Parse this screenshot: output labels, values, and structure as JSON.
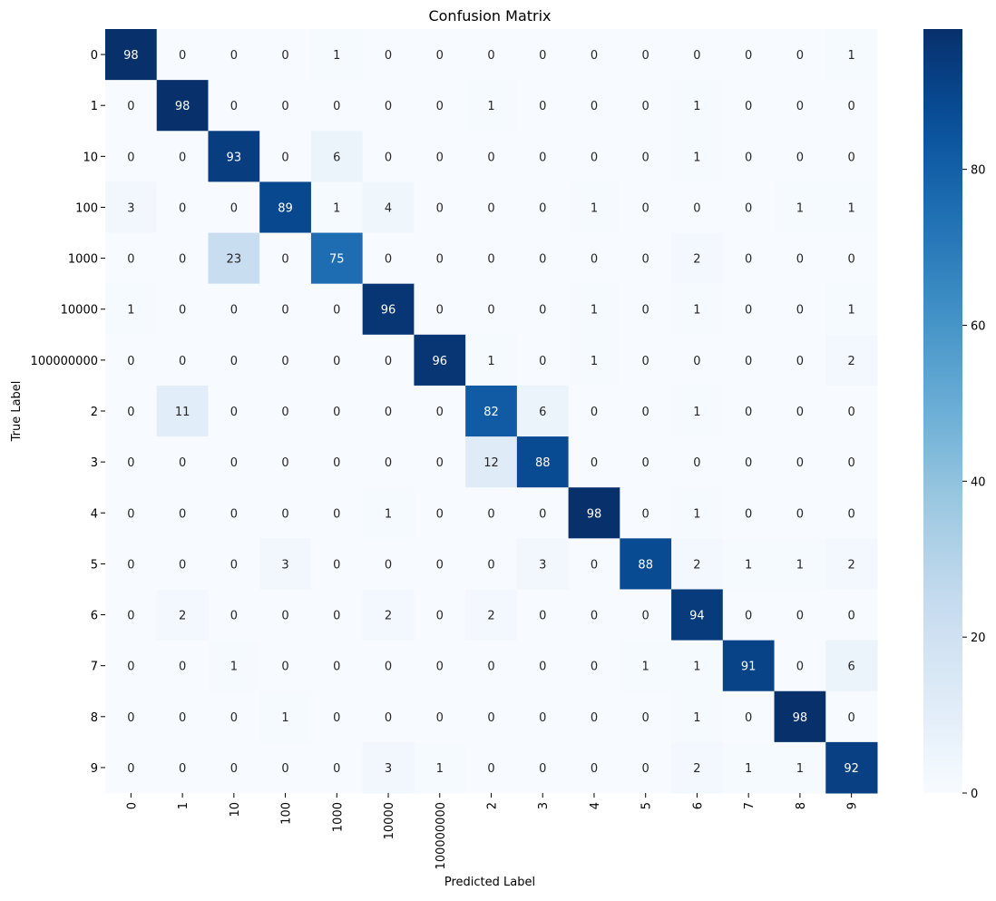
{
  "chart_data": {
    "type": "heatmap",
    "title": "Confusion Matrix",
    "xlabel": "Predicted Label",
    "ylabel": "True Label",
    "row_labels": [
      "0",
      "1",
      "10",
      "100",
      "1000",
      "10000",
      "100000000",
      "2",
      "3",
      "4",
      "5",
      "6",
      "7",
      "8",
      "9"
    ],
    "col_labels": [
      "0",
      "1",
      "10",
      "100",
      "1000",
      "10000",
      "100000000",
      "2",
      "3",
      "4",
      "5",
      "6",
      "7",
      "8",
      "9"
    ],
    "values": [
      [
        98,
        0,
        0,
        0,
        1,
        0,
        0,
        0,
        0,
        0,
        0,
        0,
        0,
        0,
        1
      ],
      [
        0,
        98,
        0,
        0,
        0,
        0,
        0,
        1,
        0,
        0,
        0,
        1,
        0,
        0,
        0
      ],
      [
        0,
        0,
        93,
        0,
        6,
        0,
        0,
        0,
        0,
        0,
        0,
        1,
        0,
        0,
        0
      ],
      [
        3,
        0,
        0,
        89,
        1,
        4,
        0,
        0,
        0,
        1,
        0,
        0,
        0,
        1,
        1
      ],
      [
        0,
        0,
        23,
        0,
        75,
        0,
        0,
        0,
        0,
        0,
        0,
        2,
        0,
        0,
        0
      ],
      [
        1,
        0,
        0,
        0,
        0,
        96,
        0,
        0,
        0,
        1,
        0,
        1,
        0,
        0,
        1
      ],
      [
        0,
        0,
        0,
        0,
        0,
        0,
        96,
        1,
        0,
        1,
        0,
        0,
        0,
        0,
        2
      ],
      [
        0,
        11,
        0,
        0,
        0,
        0,
        0,
        82,
        6,
        0,
        0,
        1,
        0,
        0,
        0
      ],
      [
        0,
        0,
        0,
        0,
        0,
        0,
        0,
        12,
        88,
        0,
        0,
        0,
        0,
        0,
        0
      ],
      [
        0,
        0,
        0,
        0,
        0,
        1,
        0,
        0,
        0,
        98,
        0,
        1,
        0,
        0,
        0
      ],
      [
        0,
        0,
        0,
        3,
        0,
        0,
        0,
        0,
        3,
        0,
        88,
        2,
        1,
        1,
        2
      ],
      [
        0,
        2,
        0,
        0,
        0,
        2,
        0,
        2,
        0,
        0,
        0,
        94,
        0,
        0,
        0
      ],
      [
        0,
        0,
        1,
        0,
        0,
        0,
        0,
        0,
        0,
        0,
        1,
        1,
        91,
        0,
        6
      ],
      [
        0,
        0,
        0,
        1,
        0,
        0,
        0,
        0,
        0,
        0,
        0,
        1,
        0,
        98,
        0
      ],
      [
        0,
        0,
        0,
        0,
        0,
        3,
        1,
        0,
        0,
        0,
        0,
        2,
        1,
        1,
        92
      ]
    ],
    "colorbar": {
      "min": 0,
      "max": 98,
      "ticks": [
        0,
        20,
        40,
        60,
        80
      ]
    },
    "colormap": "Blues",
    "colors": {
      "low": "#f7fbff",
      "high": "#08306b",
      "text_dark": "#262626",
      "text_light": "#ffffff"
    }
  }
}
